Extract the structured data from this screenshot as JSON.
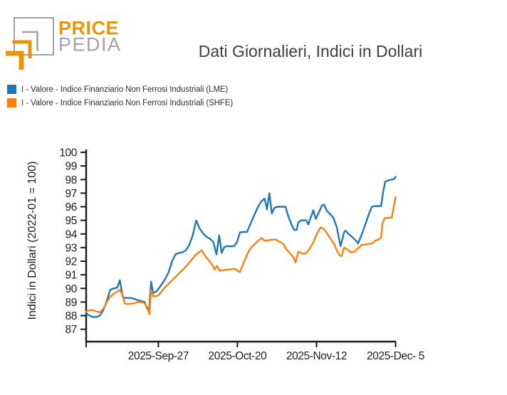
{
  "logo": {
    "brand_top": "PRICE",
    "brand_bottom": "PEDIA"
  },
  "header": {
    "title": "Dati Giornalieri, Indici in Dollari"
  },
  "colors": {
    "series_blue": "#1f77b4",
    "series_orange": "#ff7f0e",
    "axis": "#1a1a1a",
    "logo_orange": "#e8940c",
    "logo_gray": "#a2a2a2",
    "title_text": "#3d3d3d"
  },
  "legend": [
    {
      "label": "I - Valore - Indice Finanziario Non Ferrosi Industriali (LME)",
      "color": "#1f77b4"
    },
    {
      "label": "I - Valore - Indice Finanziario Non Ferrosi Industriali (SHFE)",
      "color": "#ff7f0e"
    }
  ],
  "chart_data": {
    "type": "line",
    "title": "Dati Giornalieri, Indici in Dollari",
    "xlabel": "",
    "ylabel": "Indici in Dollari (2022-01 = 100)",
    "ylim": [
      87,
      100
    ],
    "y_ticks": [
      100,
      99,
      98,
      97,
      96,
      95,
      94,
      93,
      92,
      91,
      90,
      89,
      88,
      87
    ],
    "grid": false,
    "legend_position": "top-left above plot",
    "x_unit": "days from 2025-Sep-06",
    "x_domain_days": [
      0,
      90
    ],
    "x_ticks": [
      {
        "day": 0,
        "label": ""
      },
      {
        "day": 21,
        "label": "2025-Sep-27"
      },
      {
        "day": 44,
        "label": "2025-Oct-20"
      },
      {
        "day": 67,
        "label": "2025-Nov-12"
      },
      {
        "day": 90,
        "label": "2025-Dec- 5"
      }
    ],
    "series": [
      {
        "name": "I - Valore - Indice Finanziario Non Ferrosi Industriali (LME)",
        "color": "#1f77b4",
        "points": [
          [
            0,
            88.15
          ],
          [
            1,
            88.0
          ],
          [
            2,
            87.9
          ],
          [
            3,
            87.9
          ],
          [
            4,
            88.0
          ],
          [
            5,
            88.4
          ],
          [
            6,
            89.1
          ],
          [
            7,
            89.9
          ],
          [
            8,
            90.0
          ],
          [
            9,
            90.05
          ],
          [
            9.8,
            90.6
          ],
          [
            10.6,
            89.4
          ],
          [
            11,
            89.3
          ],
          [
            13,
            89.3
          ],
          [
            15,
            89.15
          ],
          [
            17,
            89.0
          ],
          [
            17.8,
            88.5
          ],
          [
            18.3,
            88.35
          ],
          [
            18.9,
            90.5
          ],
          [
            19.5,
            89.65
          ],
          [
            20.5,
            89.8
          ],
          [
            21,
            89.95
          ],
          [
            22,
            90.3
          ],
          [
            23,
            90.7
          ],
          [
            24,
            91.2
          ],
          [
            25,
            92.0
          ],
          [
            26,
            92.5
          ],
          [
            27,
            92.6
          ],
          [
            28,
            92.65
          ],
          [
            29,
            92.8
          ],
          [
            30,
            93.2
          ],
          [
            31,
            93.9
          ],
          [
            32,
            95.0
          ],
          [
            33,
            94.4
          ],
          [
            34,
            94.05
          ],
          [
            35,
            93.8
          ],
          [
            36,
            93.65
          ],
          [
            37,
            93.4
          ],
          [
            37.9,
            92.5
          ],
          [
            38.7,
            93.9
          ],
          [
            39.4,
            92.6
          ],
          [
            40.2,
            93.05
          ],
          [
            41,
            93.1
          ],
          [
            43,
            93.1
          ],
          [
            43.9,
            93.4
          ],
          [
            44.7,
            94.1
          ],
          [
            45.4,
            94.15
          ],
          [
            46.8,
            94.15
          ],
          [
            47.2,
            94.4
          ],
          [
            48,
            94.85
          ],
          [
            49,
            95.45
          ],
          [
            50,
            96.0
          ],
          [
            51,
            96.4
          ],
          [
            51.9,
            96.6
          ],
          [
            52.6,
            95.8
          ],
          [
            53.3,
            97.0
          ],
          [
            54,
            95.5
          ],
          [
            54.7,
            95.9
          ],
          [
            55.5,
            96.0
          ],
          [
            58,
            96.0
          ],
          [
            58.8,
            95.3
          ],
          [
            59.9,
            94.6
          ],
          [
            60.5,
            94.3
          ],
          [
            61.2,
            94.3
          ],
          [
            61.7,
            94.85
          ],
          [
            62.5,
            95.0
          ],
          [
            64,
            95.0
          ],
          [
            64.6,
            94.7
          ],
          [
            66.1,
            95.75
          ],
          [
            66.8,
            95.1
          ],
          [
            68.6,
            96.1
          ],
          [
            69.2,
            96.15
          ],
          [
            70,
            95.7
          ],
          [
            70.8,
            95.5
          ],
          [
            71.9,
            95.2
          ],
          [
            72.9,
            94.5
          ],
          [
            74,
            93.1
          ],
          [
            75,
            94.1
          ],
          [
            75.4,
            94.25
          ],
          [
            76.4,
            94.0
          ],
          [
            77.5,
            93.75
          ],
          [
            78.5,
            93.5
          ],
          [
            79.1,
            93.3
          ],
          [
            80.2,
            94.0
          ],
          [
            81.2,
            94.7
          ],
          [
            82.3,
            95.5
          ],
          [
            83.1,
            96.0
          ],
          [
            84,
            96.05
          ],
          [
            85.8,
            96.05
          ],
          [
            86.4,
            97.1
          ],
          [
            87,
            97.85
          ],
          [
            88,
            97.95
          ],
          [
            89,
            98.0
          ],
          [
            89.6,
            98.05
          ],
          [
            90,
            98.2
          ]
        ]
      },
      {
        "name": "I - Valore - Indice Finanziario Non Ferrosi Industriali (SHFE)",
        "color": "#ff7f0e",
        "points": [
          [
            0,
            88.3
          ],
          [
            1,
            88.4
          ],
          [
            2,
            88.4
          ],
          [
            3,
            88.3
          ],
          [
            4,
            88.25
          ],
          [
            5,
            88.5
          ],
          [
            6,
            89.0
          ],
          [
            7,
            89.4
          ],
          [
            8,
            89.6
          ],
          [
            9,
            89.75
          ],
          [
            9.8,
            89.9
          ],
          [
            10.6,
            89.5
          ],
          [
            11.2,
            88.9
          ],
          [
            12,
            88.85
          ],
          [
            14,
            88.9
          ],
          [
            15,
            89.0
          ],
          [
            16,
            89.0
          ],
          [
            17,
            88.9
          ],
          [
            17.8,
            88.6
          ],
          [
            18.4,
            88.1
          ],
          [
            18.9,
            89.9
          ],
          [
            19.6,
            89.4
          ],
          [
            20.5,
            89.45
          ],
          [
            21,
            89.5
          ],
          [
            22,
            89.8
          ],
          [
            23,
            90.1
          ],
          [
            24,
            90.35
          ],
          [
            25,
            90.6
          ],
          [
            26,
            90.85
          ],
          [
            27,
            91.1
          ],
          [
            28,
            91.35
          ],
          [
            29,
            91.6
          ],
          [
            30,
            91.9
          ],
          [
            31,
            92.2
          ],
          [
            32,
            92.5
          ],
          [
            33.6,
            92.8
          ],
          [
            34.7,
            92.35
          ],
          [
            35.9,
            92.0
          ],
          [
            37,
            91.6
          ],
          [
            37.3,
            91.4
          ],
          [
            38.1,
            91.65
          ],
          [
            38.8,
            91.3
          ],
          [
            40,
            91.35
          ],
          [
            42,
            91.4
          ],
          [
            43.3,
            91.45
          ],
          [
            44,
            91.3
          ],
          [
            44.7,
            91.2
          ],
          [
            46,
            92.0
          ],
          [
            47,
            92.6
          ],
          [
            48,
            93.0
          ],
          [
            49,
            93.25
          ],
          [
            50,
            93.5
          ],
          [
            51,
            93.7
          ],
          [
            51.9,
            93.5
          ],
          [
            53.3,
            93.55
          ],
          [
            54.7,
            93.6
          ],
          [
            55.1,
            93.6
          ],
          [
            56.1,
            93.45
          ],
          [
            57.2,
            93.3
          ],
          [
            58.2,
            92.9
          ],
          [
            59.2,
            92.6
          ],
          [
            60.3,
            92.3
          ],
          [
            60.9,
            91.9
          ],
          [
            61.7,
            92.7
          ],
          [
            63,
            92.55
          ],
          [
            64,
            92.6
          ],
          [
            65.1,
            92.95
          ],
          [
            66.1,
            93.4
          ],
          [
            67.1,
            94.0
          ],
          [
            68.2,
            94.5
          ],
          [
            69.2,
            94.35
          ],
          [
            70.2,
            94.0
          ],
          [
            71.2,
            93.6
          ],
          [
            72.3,
            93.2
          ],
          [
            72.9,
            92.8
          ],
          [
            73.8,
            92.4
          ],
          [
            74.4,
            92.4
          ],
          [
            75,
            93.0
          ],
          [
            76,
            92.85
          ],
          [
            77,
            92.65
          ],
          [
            78.1,
            92.7
          ],
          [
            79.1,
            92.95
          ],
          [
            80.2,
            93.2
          ],
          [
            82,
            93.25
          ],
          [
            83.1,
            93.3
          ],
          [
            84.1,
            93.5
          ],
          [
            85.1,
            93.6
          ],
          [
            85.8,
            93.75
          ],
          [
            86.2,
            94.8
          ],
          [
            86.8,
            95.15
          ],
          [
            88,
            95.2
          ],
          [
            88.9,
            95.2
          ],
          [
            90,
            96.7
          ]
        ]
      }
    ]
  }
}
